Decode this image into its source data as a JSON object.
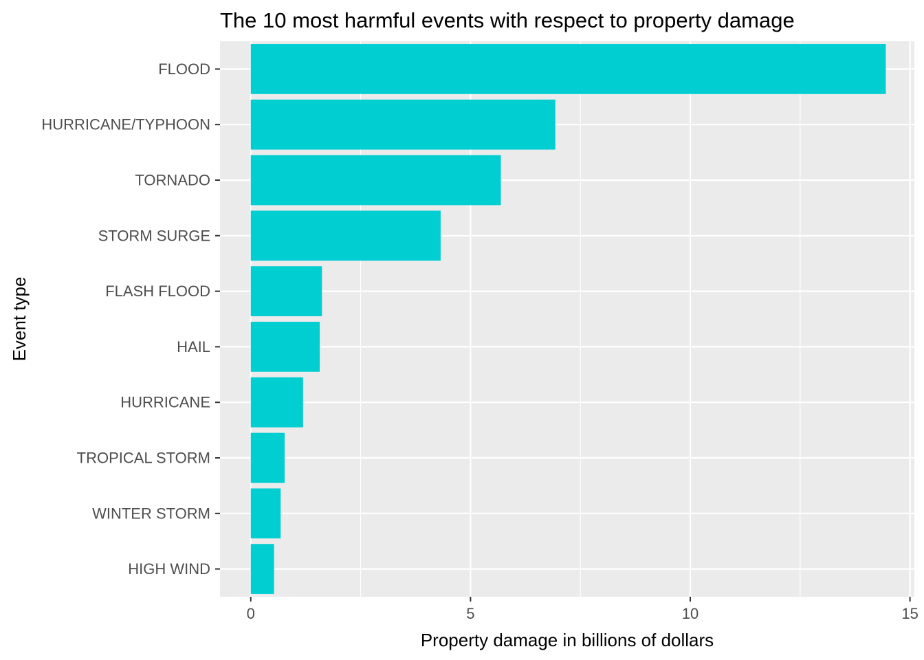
{
  "chart_data": {
    "type": "bar",
    "orientation": "horizontal",
    "title": "The 10 most harmful events with respect to property damage",
    "xlabel": "Property damage in billions of dollars",
    "ylabel": "Event type",
    "categories": [
      "FLOOD",
      "HURRICANE/TYPHOON",
      "TORNADO",
      "STORM SURGE",
      "FLASH FLOOD",
      "HAIL",
      "HURRICANE",
      "TROPICAL STORM",
      "WINTER STORM",
      "HIGH WIND"
    ],
    "values": [
      14.45,
      6.93,
      5.69,
      4.32,
      1.62,
      1.57,
      1.19,
      0.77,
      0.68,
      0.53
    ],
    "xlim": [
      -0.7,
      15.1
    ],
    "xticks": [
      0,
      5,
      10,
      15
    ],
    "grid": true,
    "legend": "none",
    "colors": {
      "bar": "#00CED1",
      "panel": "#EBEBEB",
      "grid": "#FFFFFF",
      "tick": "#333333"
    }
  }
}
